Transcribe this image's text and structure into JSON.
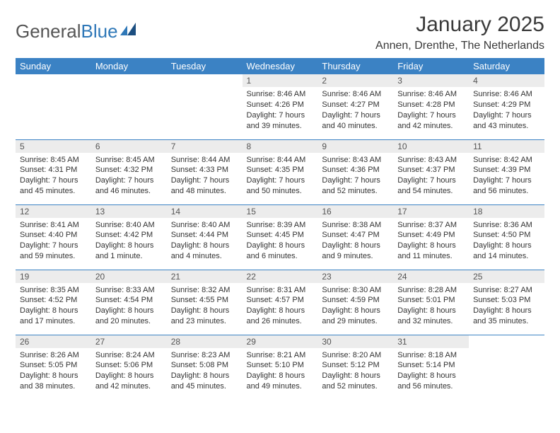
{
  "logo": {
    "text1": "General",
    "text2": "Blue"
  },
  "title": "January 2025",
  "location": "Annen, Drenthe, The Netherlands",
  "colors": {
    "header_bg": "#3b82c4",
    "header_fg": "#ffffff",
    "daynum_bg": "#ececec",
    "border": "#3b82c4"
  },
  "day_headers": [
    "Sunday",
    "Monday",
    "Tuesday",
    "Wednesday",
    "Thursday",
    "Friday",
    "Saturday"
  ],
  "weeks": [
    [
      {
        "num": "",
        "lines": []
      },
      {
        "num": "",
        "lines": []
      },
      {
        "num": "",
        "lines": []
      },
      {
        "num": "1",
        "lines": [
          "Sunrise: 8:46 AM",
          "Sunset: 4:26 PM",
          "Daylight: 7 hours",
          "and 39 minutes."
        ]
      },
      {
        "num": "2",
        "lines": [
          "Sunrise: 8:46 AM",
          "Sunset: 4:27 PM",
          "Daylight: 7 hours",
          "and 40 minutes."
        ]
      },
      {
        "num": "3",
        "lines": [
          "Sunrise: 8:46 AM",
          "Sunset: 4:28 PM",
          "Daylight: 7 hours",
          "and 42 minutes."
        ]
      },
      {
        "num": "4",
        "lines": [
          "Sunrise: 8:46 AM",
          "Sunset: 4:29 PM",
          "Daylight: 7 hours",
          "and 43 minutes."
        ]
      }
    ],
    [
      {
        "num": "5",
        "lines": [
          "Sunrise: 8:45 AM",
          "Sunset: 4:31 PM",
          "Daylight: 7 hours",
          "and 45 minutes."
        ]
      },
      {
        "num": "6",
        "lines": [
          "Sunrise: 8:45 AM",
          "Sunset: 4:32 PM",
          "Daylight: 7 hours",
          "and 46 minutes."
        ]
      },
      {
        "num": "7",
        "lines": [
          "Sunrise: 8:44 AM",
          "Sunset: 4:33 PM",
          "Daylight: 7 hours",
          "and 48 minutes."
        ]
      },
      {
        "num": "8",
        "lines": [
          "Sunrise: 8:44 AM",
          "Sunset: 4:35 PM",
          "Daylight: 7 hours",
          "and 50 minutes."
        ]
      },
      {
        "num": "9",
        "lines": [
          "Sunrise: 8:43 AM",
          "Sunset: 4:36 PM",
          "Daylight: 7 hours",
          "and 52 minutes."
        ]
      },
      {
        "num": "10",
        "lines": [
          "Sunrise: 8:43 AM",
          "Sunset: 4:37 PM",
          "Daylight: 7 hours",
          "and 54 minutes."
        ]
      },
      {
        "num": "11",
        "lines": [
          "Sunrise: 8:42 AM",
          "Sunset: 4:39 PM",
          "Daylight: 7 hours",
          "and 56 minutes."
        ]
      }
    ],
    [
      {
        "num": "12",
        "lines": [
          "Sunrise: 8:41 AM",
          "Sunset: 4:40 PM",
          "Daylight: 7 hours",
          "and 59 minutes."
        ]
      },
      {
        "num": "13",
        "lines": [
          "Sunrise: 8:40 AM",
          "Sunset: 4:42 PM",
          "Daylight: 8 hours",
          "and 1 minute."
        ]
      },
      {
        "num": "14",
        "lines": [
          "Sunrise: 8:40 AM",
          "Sunset: 4:44 PM",
          "Daylight: 8 hours",
          "and 4 minutes."
        ]
      },
      {
        "num": "15",
        "lines": [
          "Sunrise: 8:39 AM",
          "Sunset: 4:45 PM",
          "Daylight: 8 hours",
          "and 6 minutes."
        ]
      },
      {
        "num": "16",
        "lines": [
          "Sunrise: 8:38 AM",
          "Sunset: 4:47 PM",
          "Daylight: 8 hours",
          "and 9 minutes."
        ]
      },
      {
        "num": "17",
        "lines": [
          "Sunrise: 8:37 AM",
          "Sunset: 4:49 PM",
          "Daylight: 8 hours",
          "and 11 minutes."
        ]
      },
      {
        "num": "18",
        "lines": [
          "Sunrise: 8:36 AM",
          "Sunset: 4:50 PM",
          "Daylight: 8 hours",
          "and 14 minutes."
        ]
      }
    ],
    [
      {
        "num": "19",
        "lines": [
          "Sunrise: 8:35 AM",
          "Sunset: 4:52 PM",
          "Daylight: 8 hours",
          "and 17 minutes."
        ]
      },
      {
        "num": "20",
        "lines": [
          "Sunrise: 8:33 AM",
          "Sunset: 4:54 PM",
          "Daylight: 8 hours",
          "and 20 minutes."
        ]
      },
      {
        "num": "21",
        "lines": [
          "Sunrise: 8:32 AM",
          "Sunset: 4:55 PM",
          "Daylight: 8 hours",
          "and 23 minutes."
        ]
      },
      {
        "num": "22",
        "lines": [
          "Sunrise: 8:31 AM",
          "Sunset: 4:57 PM",
          "Daylight: 8 hours",
          "and 26 minutes."
        ]
      },
      {
        "num": "23",
        "lines": [
          "Sunrise: 8:30 AM",
          "Sunset: 4:59 PM",
          "Daylight: 8 hours",
          "and 29 minutes."
        ]
      },
      {
        "num": "24",
        "lines": [
          "Sunrise: 8:28 AM",
          "Sunset: 5:01 PM",
          "Daylight: 8 hours",
          "and 32 minutes."
        ]
      },
      {
        "num": "25",
        "lines": [
          "Sunrise: 8:27 AM",
          "Sunset: 5:03 PM",
          "Daylight: 8 hours",
          "and 35 minutes."
        ]
      }
    ],
    [
      {
        "num": "26",
        "lines": [
          "Sunrise: 8:26 AM",
          "Sunset: 5:05 PM",
          "Daylight: 8 hours",
          "and 38 minutes."
        ]
      },
      {
        "num": "27",
        "lines": [
          "Sunrise: 8:24 AM",
          "Sunset: 5:06 PM",
          "Daylight: 8 hours",
          "and 42 minutes."
        ]
      },
      {
        "num": "28",
        "lines": [
          "Sunrise: 8:23 AM",
          "Sunset: 5:08 PM",
          "Daylight: 8 hours",
          "and 45 minutes."
        ]
      },
      {
        "num": "29",
        "lines": [
          "Sunrise: 8:21 AM",
          "Sunset: 5:10 PM",
          "Daylight: 8 hours",
          "and 49 minutes."
        ]
      },
      {
        "num": "30",
        "lines": [
          "Sunrise: 8:20 AM",
          "Sunset: 5:12 PM",
          "Daylight: 8 hours",
          "and 52 minutes."
        ]
      },
      {
        "num": "31",
        "lines": [
          "Sunrise: 8:18 AM",
          "Sunset: 5:14 PM",
          "Daylight: 8 hours",
          "and 56 minutes."
        ]
      },
      {
        "num": "",
        "lines": []
      }
    ]
  ]
}
